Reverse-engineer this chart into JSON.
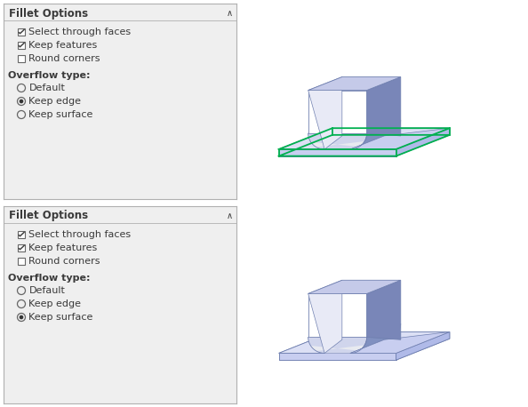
{
  "panel_bg": "#efefef",
  "border_color": "#b0b0b0",
  "title_text": "Fillet Options",
  "title_color": "#3a3a3a",
  "label_color": "#3a3a3a",
  "checkboxes": [
    {
      "label": "Select through faces",
      "checked": true
    },
    {
      "label": "Keep features",
      "checked": true
    },
    {
      "label": "Round corners",
      "checked": false
    }
  ],
  "overflow_label": "Overflow type:",
  "radio_groups": [
    [
      {
        "label": "Default",
        "selected": false
      },
      {
        "label": "Keep edge",
        "selected": true
      },
      {
        "label": "Keep surface",
        "selected": false
      }
    ],
    [
      {
        "label": "Default",
        "selected": false
      },
      {
        "label": "Keep edge",
        "selected": false
      },
      {
        "label": "Keep surface",
        "selected": true
      }
    ]
  ],
  "font_size_title": 8.5,
  "font_size_items": 8.0,
  "font_size_overflow": 8.0,
  "sketch_colors": {
    "face_front": "#e8eaf6",
    "face_top": "#c5cae9",
    "face_right": "#7986b8",
    "face_right_dark": "#5c6a9e",
    "plate_top": "#dce0f5",
    "plate_top_back": "#c8cef0",
    "plate_right": "#b0bae8",
    "plate_front": "#c8cef0",
    "fillet_front": "#d0d5ec",
    "fillet_sheen": "#e8eaf0",
    "fillet_right": "#8090c0",
    "edge_color": "#7080b0",
    "green_edge": "#00b050",
    "shadow_color": "#a0a8c8"
  }
}
